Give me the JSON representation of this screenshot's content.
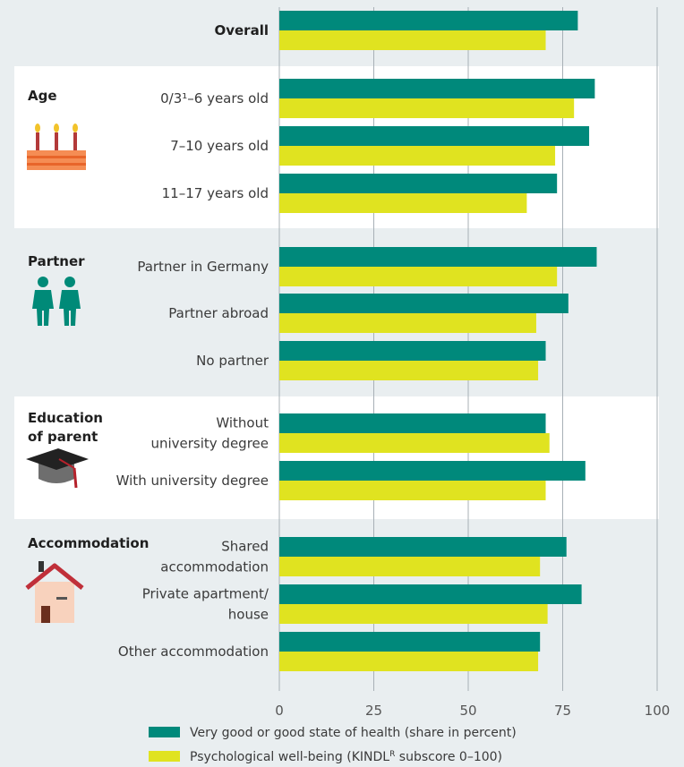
{
  "chart_data": {
    "type": "bar",
    "orientation": "horizontal",
    "xlim": [
      0,
      100
    ],
    "xticks": [
      "0",
      "25",
      "50",
      "75",
      "100"
    ],
    "grid": true,
    "legend_position": "bottom",
    "colors": {
      "health": "#00897b",
      "wellbeing": "#e0e320"
    },
    "series": [
      {
        "name": "Very good or good state of health (share in percent)"
      },
      {
        "name": "Psychological well-being (KINDL",
        "name_sup": "R",
        "name_after": " subscore 0–100)"
      }
    ],
    "groups": [
      {
        "label": "Overall",
        "icon": "",
        "shaded": true,
        "categories": [
          {
            "label": [
              "Overall"
            ],
            "health": 79,
            "wellbeing": 70.5
          }
        ]
      },
      {
        "label": [
          "Age"
        ],
        "icon": "birthday-cake-icon",
        "shaded": false,
        "categories": [
          {
            "label": [
              "0/3¹–6 years old"
            ],
            "health": 83.5,
            "wellbeing": 78
          },
          {
            "label": [
              "7–10 years old"
            ],
            "health": 82,
            "wellbeing": 73
          },
          {
            "label": [
              "11–17 years old"
            ],
            "health": 73.5,
            "wellbeing": 65.5
          }
        ]
      },
      {
        "label": [
          "Partner"
        ],
        "icon": "couple-icon",
        "shaded": true,
        "categories": [
          {
            "label": [
              "Partner in Germany"
            ],
            "health": 84,
            "wellbeing": 73.5
          },
          {
            "label": [
              "Partner abroad"
            ],
            "health": 76.5,
            "wellbeing": 68
          },
          {
            "label": [
              "No partner"
            ],
            "health": 70.5,
            "wellbeing": 68.5
          }
        ]
      },
      {
        "label": [
          "Education",
          "of parent"
        ],
        "icon": "graduation-cap-icon",
        "shaded": false,
        "categories": [
          {
            "label": [
              "Without",
              "university degree"
            ],
            "health": 70.5,
            "wellbeing": 71.5
          },
          {
            "label": [
              "With university degree"
            ],
            "health": 81,
            "wellbeing": 70.5
          }
        ]
      },
      {
        "label": [
          "Accommodation"
        ],
        "icon": "house-icon",
        "shaded": true,
        "categories": [
          {
            "label": [
              "Shared",
              "accommodation"
            ],
            "health": 76,
            "wellbeing": 69
          },
          {
            "label": [
              "Private apartment/",
              "house"
            ],
            "health": 80,
            "wellbeing": 71
          },
          {
            "label": [
              "Other accommodation"
            ],
            "health": 69,
            "wellbeing": 68.5
          }
        ]
      }
    ]
  }
}
